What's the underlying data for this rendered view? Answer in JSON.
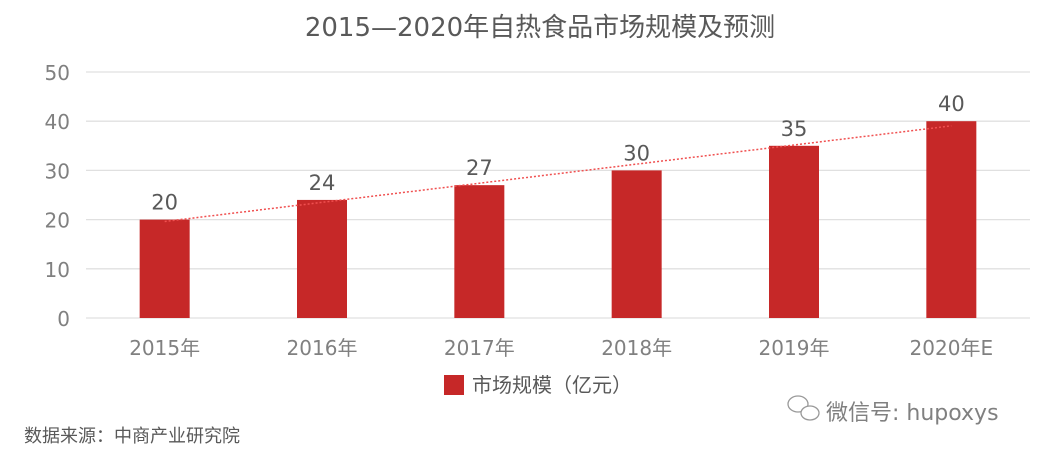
{
  "chart_data": {
    "type": "bar",
    "title": "2015—2020年自热食品市场规模及预测",
    "categories": [
      "2015年",
      "2016年",
      "2017年",
      "2018年",
      "2019年",
      "2020年E"
    ],
    "series": [
      {
        "name": "市场规模（亿元）",
        "values": [
          20,
          24,
          27,
          30,
          35,
          40
        ],
        "color": "#C62828"
      }
    ],
    "data_labels": [
      "20",
      "24",
      "27",
      "30",
      "35",
      "40"
    ],
    "yticks": [
      "0",
      "10",
      "20",
      "30",
      "40",
      "50"
    ],
    "ylim": [
      0,
      50
    ],
    "grid": true,
    "legend": "bottom",
    "trendline": {
      "type": "linear",
      "style": "dotted",
      "color": "#F05050"
    }
  },
  "footer": {
    "source": "数据来源：中商产业研究院",
    "watermark": "微信号: hupoxys"
  }
}
